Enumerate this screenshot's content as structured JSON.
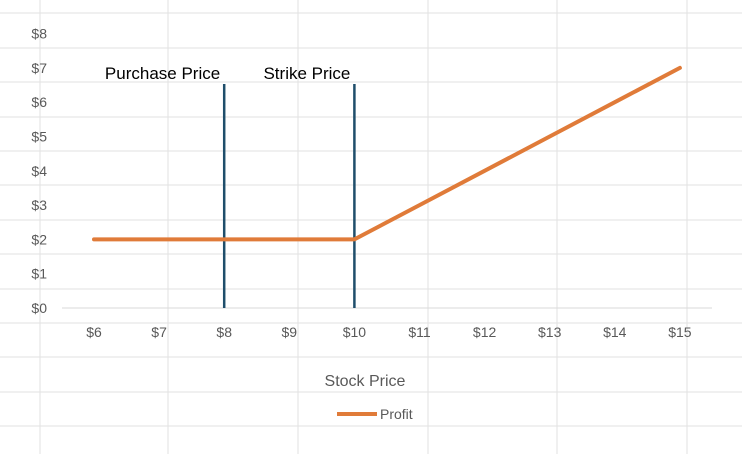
{
  "chart_data": {
    "type": "line",
    "x": [
      6,
      7,
      8,
      9,
      10,
      11,
      12,
      13,
      14,
      15
    ],
    "x_tick_labels": [
      "$6",
      "$7",
      "$8",
      "$9",
      "$10",
      "$11",
      "$12",
      "$13",
      "$14",
      "$15"
    ],
    "y_tick_labels": [
      "$0",
      "$1",
      "$2",
      "$3",
      "$4",
      "$5",
      "$6",
      "$7",
      "$8"
    ],
    "ylim": [
      0,
      8
    ],
    "series": [
      {
        "name": "Profit",
        "values": [
          2,
          2,
          2,
          2,
          2,
          3,
          4,
          5,
          6,
          7
        ],
        "color": "#E07B39"
      }
    ],
    "annotations": [
      {
        "label": "Purchase Price",
        "x": 8
      },
      {
        "label": "Strike Price",
        "x": 10
      }
    ],
    "annotation_line_color": "#1F4E6B",
    "xlabel": "Stock Price",
    "ylabel": "",
    "title": "",
    "legend_position": "bottom",
    "grid": false
  }
}
